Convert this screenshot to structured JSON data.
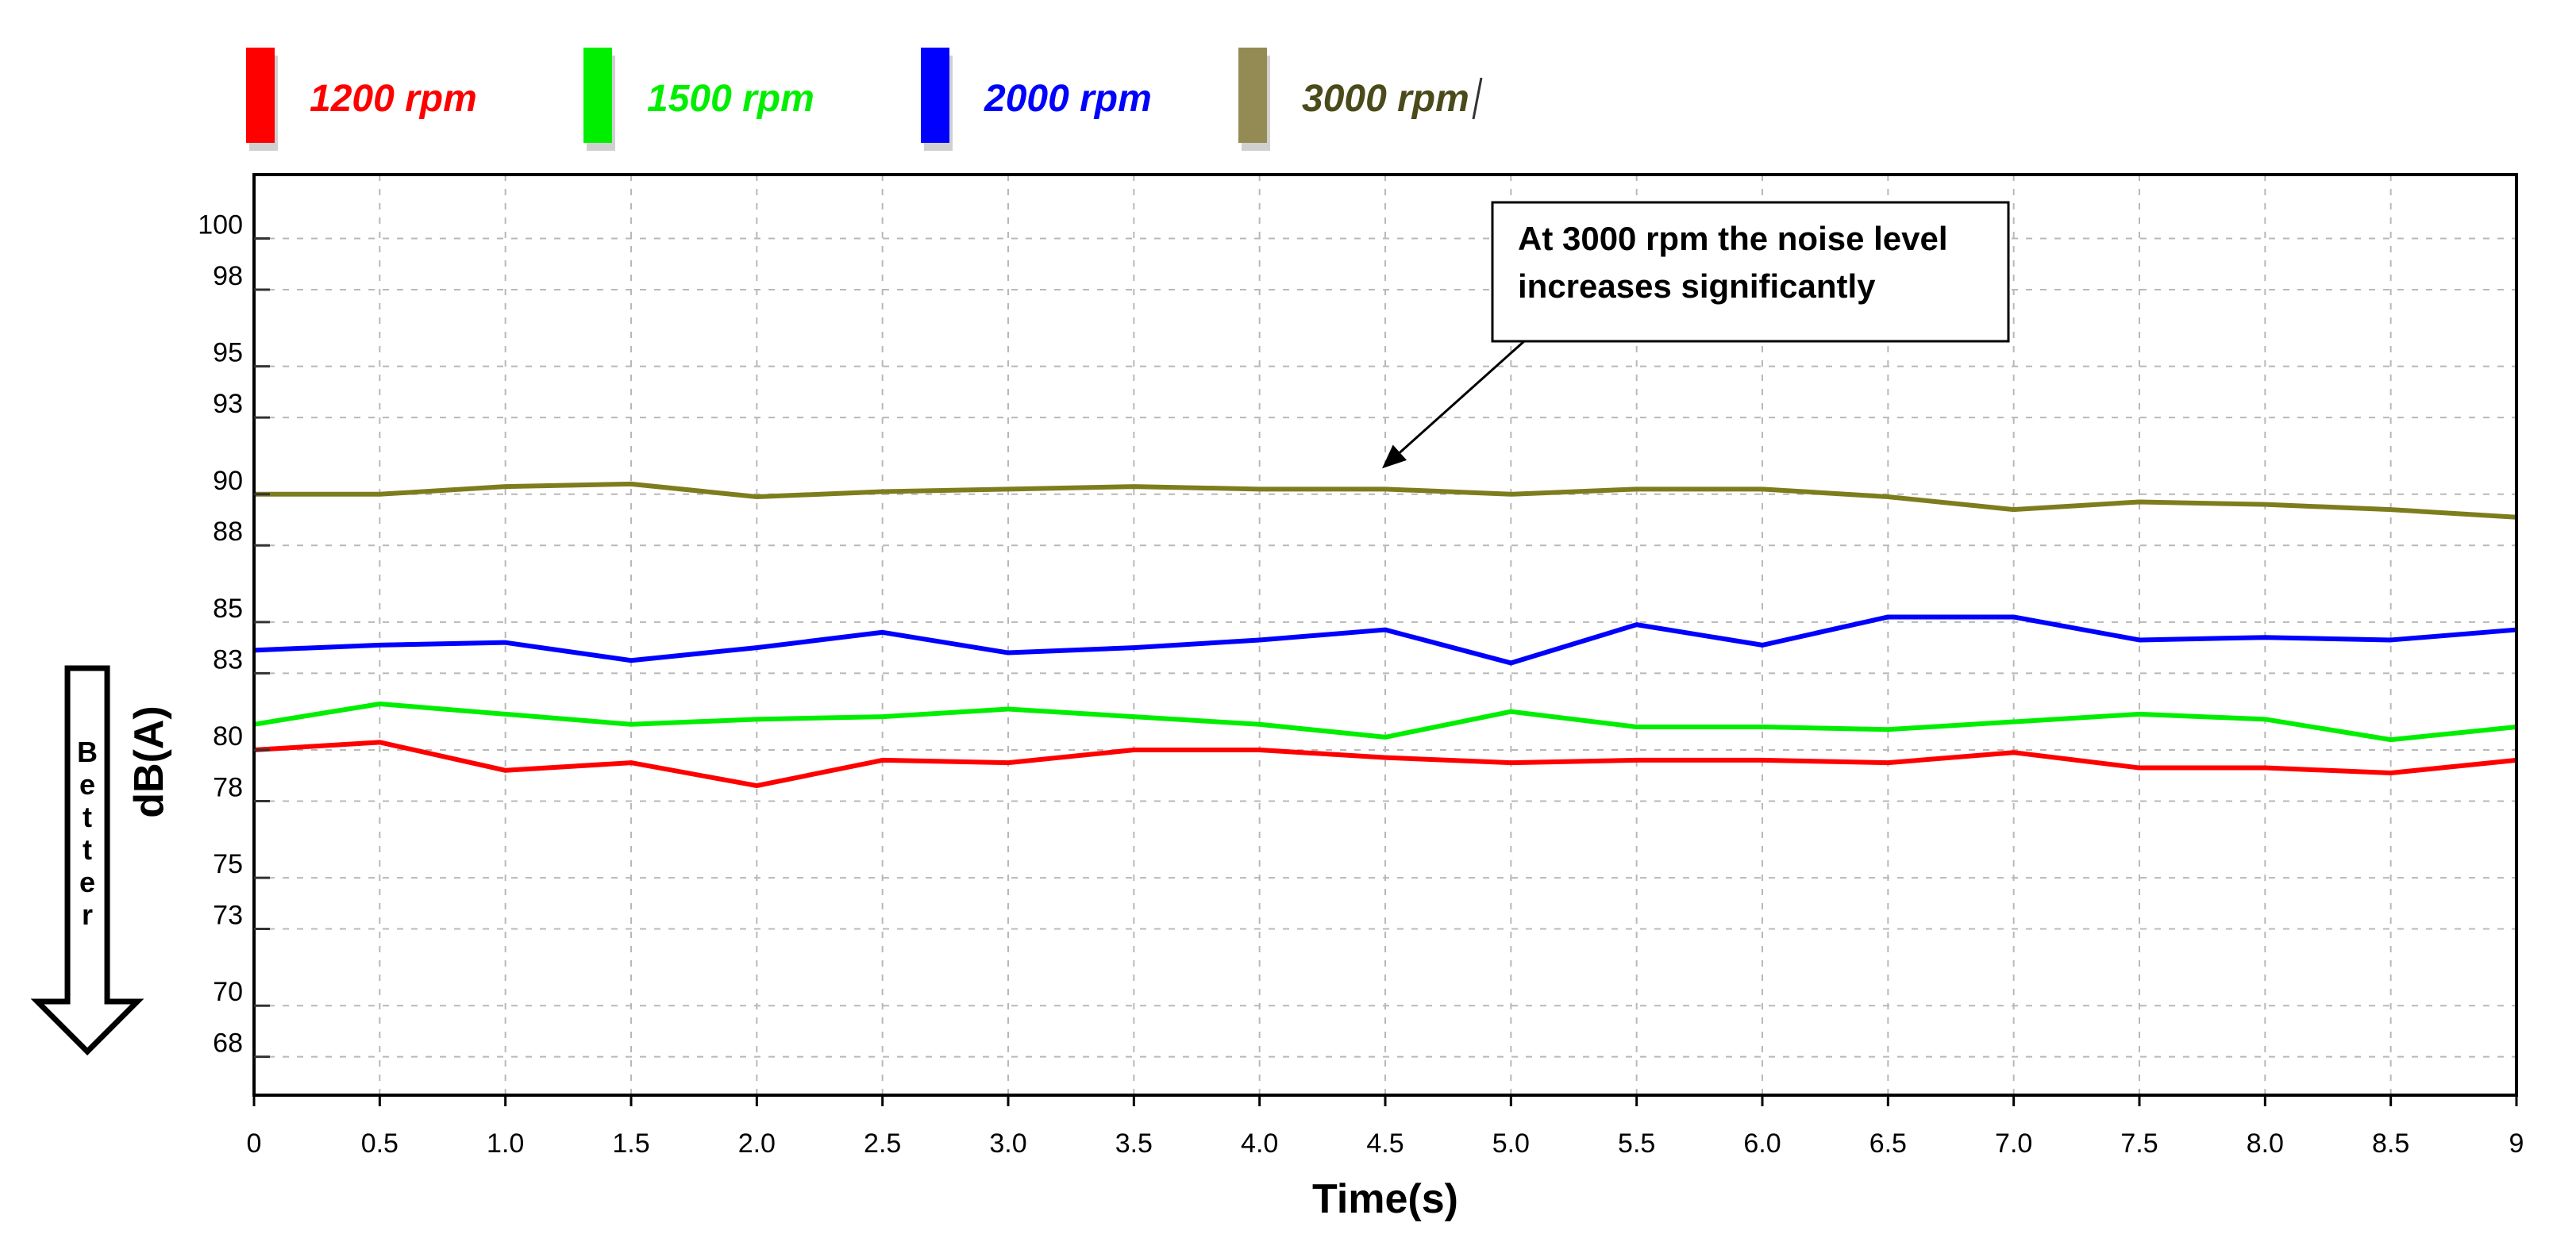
{
  "chart_data": {
    "type": "line",
    "title": "",
    "xlabel": "Time(s)",
    "ylabel": "dB(A)",
    "x": [
      0,
      0.5,
      1.0,
      1.5,
      2.0,
      2.5,
      3.0,
      3.5,
      4.0,
      4.5,
      5.0,
      5.5,
      6.0,
      6.5,
      7.0,
      7.5,
      8.0,
      8.5,
      9
    ],
    "x_tick_labels": [
      "0",
      "0.5",
      "1.0",
      "1.5",
      "2.0",
      "2.5",
      "3.0",
      "3.5",
      "4.0",
      "4.5",
      "5.0",
      "5.5",
      "6.0",
      "6.5",
      "7.0",
      "7.5",
      "8.0",
      "8.5",
      "9"
    ],
    "y_ticks": [
      100,
      98,
      95,
      93,
      90,
      88,
      85,
      83,
      80,
      78,
      75,
      73,
      70,
      68
    ],
    "xlim": [
      0,
      9
    ],
    "ylim": [
      66.5,
      102.5
    ],
    "grid": true,
    "legend_position": "top-left",
    "series": [
      {
        "name": "1200 rpm",
        "color": "#ff0000",
        "values": [
          80.0,
          80.3,
          79.2,
          79.5,
          78.6,
          79.6,
          79.5,
          80.0,
          80.0,
          79.7,
          79.5,
          79.6,
          79.6,
          79.5,
          79.9,
          79.3,
          79.3,
          79.1,
          79.6
        ]
      },
      {
        "name": "1500 rpm",
        "color": "#00ee00",
        "values": [
          81.0,
          81.8,
          81.4,
          81.0,
          81.2,
          81.3,
          81.6,
          81.3,
          81.0,
          80.5,
          81.5,
          80.9,
          80.9,
          80.8,
          81.1,
          81.4,
          81.2,
          80.4,
          80.9
        ]
      },
      {
        "name": "2000 rpm",
        "color": "#0000ff",
        "values": [
          83.9,
          84.1,
          84.2,
          83.5,
          84.0,
          84.6,
          83.8,
          84.0,
          84.3,
          84.7,
          83.4,
          84.9,
          84.1,
          85.2,
          85.2,
          84.3,
          84.4,
          84.3,
          84.7
        ]
      },
      {
        "name": "3000 rpm",
        "color": "#7d7d1e",
        "legend_color": "#948a54",
        "values": [
          90.0,
          90.0,
          90.3,
          90.4,
          89.9,
          90.1,
          90.2,
          90.3,
          90.2,
          90.2,
          90.0,
          90.2,
          90.2,
          89.9,
          89.4,
          89.7,
          89.6,
          89.4,
          89.1
        ]
      }
    ],
    "annotation": {
      "text_line1": "At 3000 rpm the noise level",
      "text_line2": "increases significantly",
      "points_to_x": 4.5,
      "points_to_y": 90.7
    },
    "side_label": "Better"
  },
  "legend_items": [
    {
      "label": "1200 rpm",
      "color": "#ff0000",
      "text_color": "#ff0000"
    },
    {
      "label": "1500 rpm",
      "color": "#00ee00",
      "text_color": "#00ee00"
    },
    {
      "label": "2000 rpm",
      "color": "#0000ff",
      "text_color": "#0000ff"
    },
    {
      "label": "3000 rpm",
      "color": "#948a54",
      "text_color": "#4a4a1a"
    }
  ]
}
